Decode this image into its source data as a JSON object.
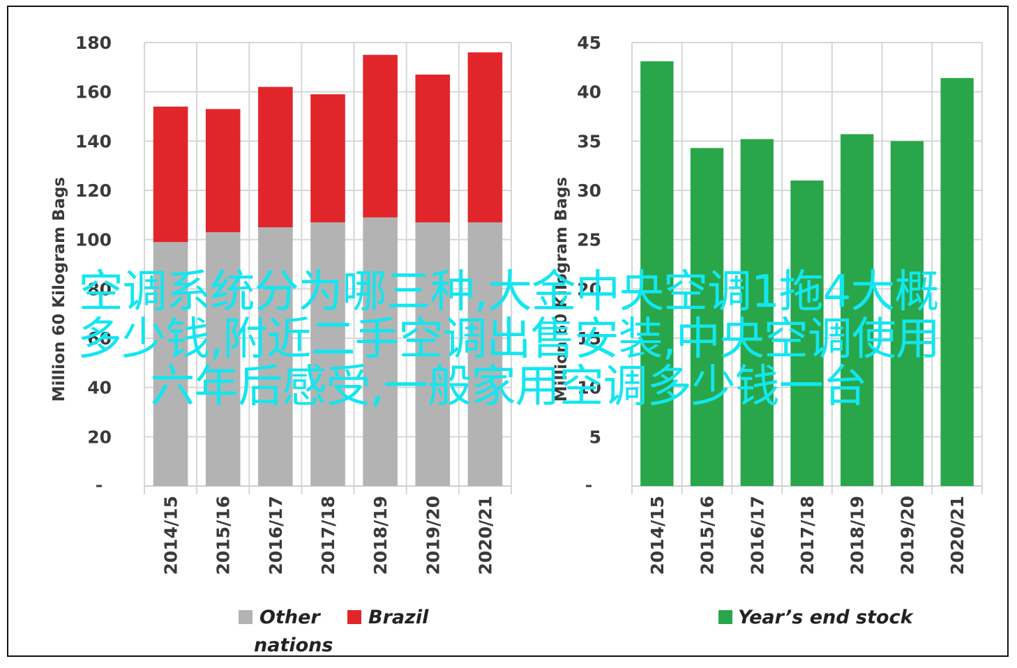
{
  "chart_data": [
    {
      "type": "bar",
      "stacked": true,
      "categories": [
        "2014/15",
        "2015/16",
        "2016/17",
        "2017/18",
        "2018/19",
        "2019/20",
        "2020/21"
      ],
      "series": [
        {
          "name": "Other nations",
          "color": "#b3b3b3",
          "values": [
            99,
            103,
            105,
            107,
            109,
            107,
            107
          ]
        },
        {
          "name": "Brazil",
          "color": "#e0262b",
          "values": [
            55,
            50,
            57,
            52,
            66,
            60,
            69
          ]
        }
      ],
      "ylabel": "Million 60 Kilogram Bags",
      "ylim": [
        0,
        180
      ],
      "yticks": [
        20,
        40,
        60,
        80,
        100,
        120,
        140,
        160,
        180
      ],
      "grid": true,
      "legend": "bottom"
    },
    {
      "type": "bar",
      "categories": [
        "2014/15",
        "2015/16",
        "2016/17",
        "2017/18",
        "2018/19",
        "2019/20",
        "2020/21"
      ],
      "series": [
        {
          "name": "Year’s end stock",
          "color": "#2aa64a",
          "values": [
            43.1,
            34.3,
            35.2,
            31.0,
            35.7,
            35.0,
            41.4
          ]
        }
      ],
      "ylabel": "Million 60 Kilogram Bags",
      "ylim": [
        0,
        45
      ],
      "yticks": [
        5,
        10,
        15,
        20,
        25,
        30,
        35,
        40,
        45
      ],
      "grid": true,
      "legend": "bottom"
    }
  ],
  "overlay": {
    "line1": "空调系统分为哪三种,大金中央空调1拖4大概",
    "line2": "多少钱,附近二手空调出售安装,中央空调使用",
    "line3": "六年后感受,一般家用空调多少钱一台"
  }
}
